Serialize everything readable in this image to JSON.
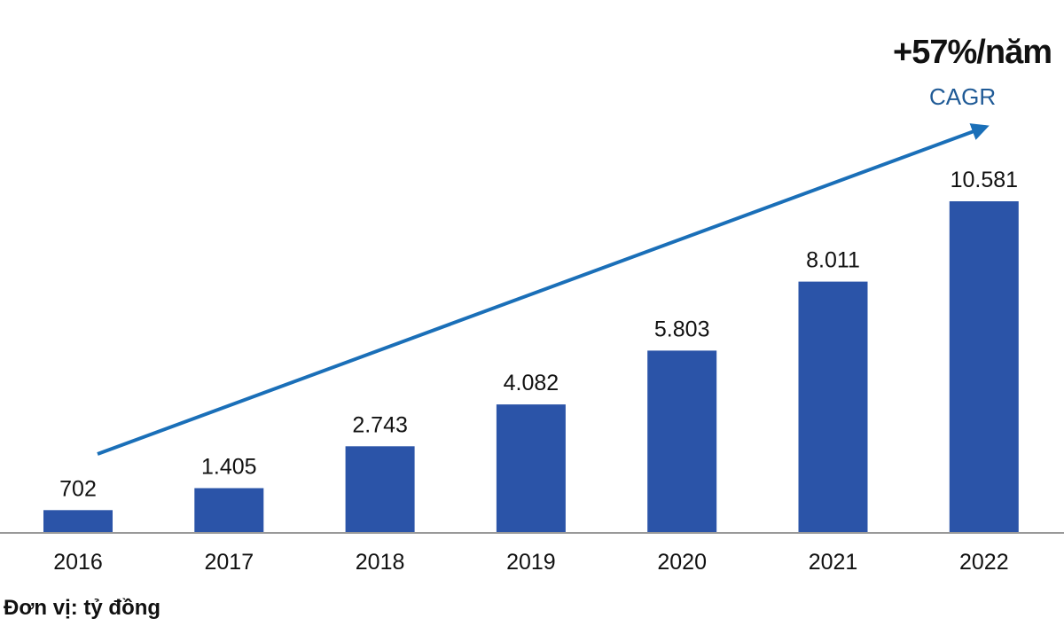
{
  "growth_label": "+57%/năm",
  "cagr_label": "CAGR",
  "unit_label": "Đơn vị: tỷ đồng",
  "colors": {
    "bar": "#2b54a8",
    "arrow": "#1a6fb8",
    "axis": "#999999",
    "text": "#111111",
    "cagr": "#1f5a96"
  },
  "chart_data": {
    "type": "bar",
    "categories": [
      "2016",
      "2017",
      "2018",
      "2019",
      "2020",
      "2021",
      "2022"
    ],
    "values": [
      702,
      1405,
      2743,
      4082,
      5803,
      8011,
      10581
    ],
    "value_labels": [
      "702",
      "1.405",
      "2.743",
      "4.082",
      "5.803",
      "8.011",
      "10.581"
    ],
    "title": "",
    "xlabel": "",
    "ylabel": "",
    "ylim": [
      0,
      10581
    ],
    "grid": false,
    "legend": "none",
    "annotations": [
      "+57%/năm",
      "CAGR"
    ]
  }
}
